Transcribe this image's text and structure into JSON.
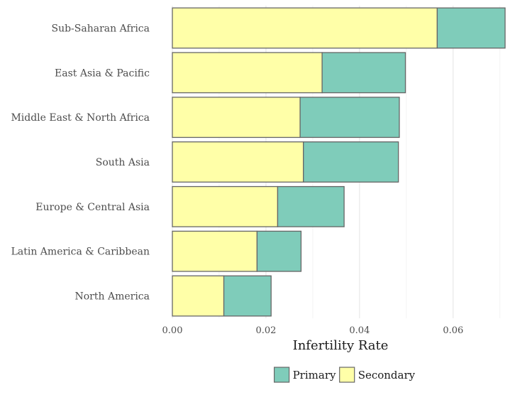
{
  "chart_data": {
    "type": "bar",
    "orientation": "horizontal",
    "stacked": true,
    "categories": [
      "Sub-Saharan Africa",
      "East Asia & Pacific",
      "Middle East & North Africa",
      "South Asia",
      "Europe & Central Asia",
      "Latin America & Caribbean",
      "North America"
    ],
    "series": [
      {
        "name": "Secondary",
        "color": "#ffffa8",
        "values": [
          0.0566,
          0.032,
          0.0273,
          0.028,
          0.0225,
          0.0181,
          0.011
        ]
      },
      {
        "name": "Primary",
        "color": "#7fccba",
        "values": [
          0.0145,
          0.0178,
          0.0212,
          0.0203,
          0.0142,
          0.0094,
          0.0101
        ]
      }
    ],
    "xlabel": "Infertility Rate",
    "ylabel": "",
    "xlim": [
      0,
      0.072
    ],
    "xticks": [
      0,
      0.02,
      0.04,
      0.06
    ],
    "xtick_labels": [
      "0.00",
      "0.02",
      "0.04",
      "0.06"
    ],
    "grid": true,
    "legend": {
      "position": "bottom",
      "entries": [
        {
          "label": "Primary",
          "color": "#7fccba"
        },
        {
          "label": "Secondary",
          "color": "#ffffa8"
        }
      ]
    },
    "bar_outline_color": "#666666"
  }
}
